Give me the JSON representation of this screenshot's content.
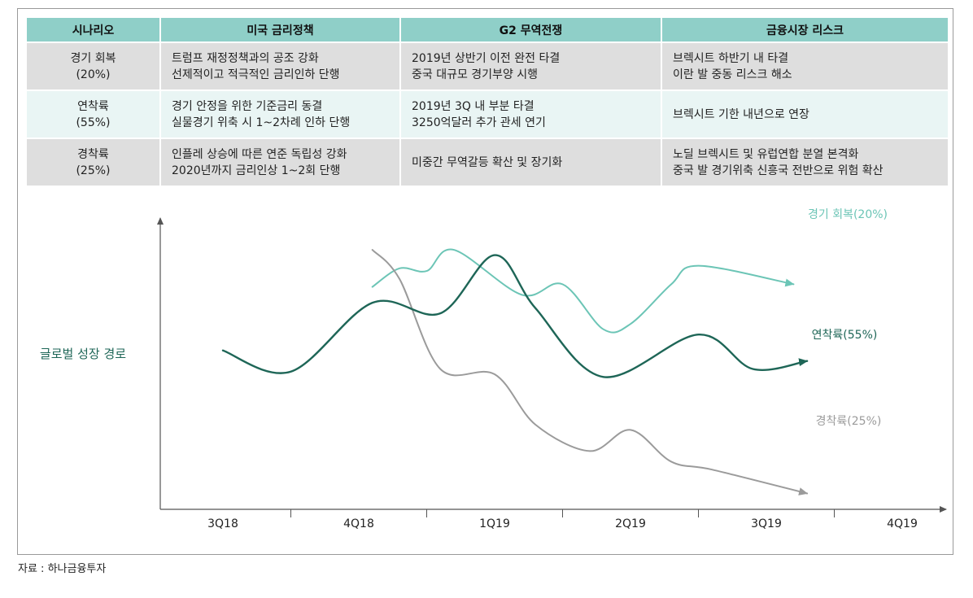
{
  "table": {
    "headers": [
      "시나리오",
      "미국 금리정책",
      "G2 무역전쟁",
      "금융시장 리스크"
    ],
    "rows": [
      {
        "scenario": [
          "경기 회복",
          "(20%)"
        ],
        "rate_policy": [
          "트럼프 재정정책과의 공조 강화",
          "선제적이고 적극적인 금리인하 단행"
        ],
        "trade_war": [
          "2019년 상반기 이전 완전 타결",
          "중국 대규모 경기부양 시행"
        ],
        "market_risk": [
          "브렉시트 하반기 내 타결",
          "이란 발 중동 리스크 해소"
        ]
      },
      {
        "scenario": [
          "연착륙",
          "(55%)"
        ],
        "rate_policy": [
          "경기 안정을 위한 기준금리 동결",
          "실물경기 위축 시 1~2차례 인하 단행"
        ],
        "trade_war": [
          "2019년 3Q 내 부분 타결",
          "3250억달러 추가 관세 연기"
        ],
        "market_risk": [
          "브렉시트 기한 내년으로 연장",
          ""
        ]
      },
      {
        "scenario": [
          "경착륙",
          "(25%)"
        ],
        "rate_policy": [
          "인플레 상승에 따른 연준 독립성 강화",
          "2020년까지 금리인상 1~2회 단행"
        ],
        "trade_war": [
          "미중간 무역갈등 확산 및 장기화",
          ""
        ],
        "market_risk": [
          "노딜 브렉시트 및 유럽연합 분열 본격화",
          "중국 발 경기위축 신흥국 전반으로 위험 확산"
        ]
      }
    ]
  },
  "chart_data": {
    "type": "line",
    "ylabel": "글로벌 성장 경로",
    "xlabel": "",
    "x_ticks": [
      "3Q18",
      "4Q18",
      "1Q19",
      "2Q19",
      "3Q19",
      "4Q19"
    ],
    "series": [
      {
        "name": "경기 회복(20%)",
        "color": "#6cc5b6",
        "x": [
          1.1,
          1.3,
          1.5,
          1.7,
          2.2,
          2.5,
          2.8,
          3.0,
          3.3,
          3.5,
          4.2
        ],
        "y": [
          84,
          91,
          90,
          98,
          81,
          85,
          68,
          70,
          85,
          92,
          85
        ]
      },
      {
        "name": "연착륙(55%)",
        "color": "#1e6657",
        "x": [
          0.0,
          0.5,
          1.1,
          1.6,
          2.0,
          2.3,
          2.8,
          3.5,
          3.9,
          4.3
        ],
        "y": [
          60,
          52,
          78,
          74,
          96,
          76,
          50,
          66,
          53,
          56
        ]
      },
      {
        "name": "경착륙(25%)",
        "color": "#9b9b9b",
        "x": [
          1.1,
          1.3,
          1.6,
          2.0,
          2.3,
          2.7,
          3.0,
          3.3,
          3.6,
          4.3
        ],
        "y": [
          98,
          87,
          53,
          51,
          32,
          22,
          30,
          18,
          15,
          6
        ]
      }
    ],
    "annotations": [
      {
        "text": "경기 회복(20%)",
        "color": "#6cc5b6"
      },
      {
        "text": "연착륙(55%)",
        "color": "#1e6657"
      },
      {
        "text": "경착륙(25%)",
        "color": "#9b9b9b"
      }
    ],
    "x_range": [
      -0.5,
      4.3
    ],
    "y_range": [
      0,
      110
    ],
    "grid": false
  },
  "source": "자료 : 하나금융투자"
}
